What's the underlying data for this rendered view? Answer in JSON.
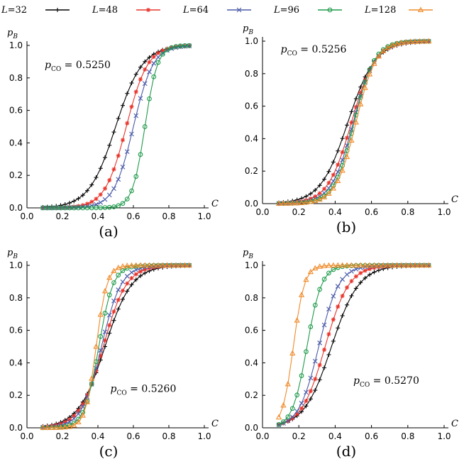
{
  "legend": [
    {
      "name": "L=32",
      "L": "L",
      "value": "=32",
      "color": "#000000",
      "marker": "plus"
    },
    {
      "name": "L=48",
      "L": "L",
      "value": "=48",
      "color": "#e8332a",
      "marker": "asterisk"
    },
    {
      "name": "L=64",
      "L": "L",
      "value": "=64",
      "color": "#4a5aa8",
      "marker": "cross"
    },
    {
      "name": "L=96",
      "L": "L",
      "value": "=96",
      "color": "#1e9a4a",
      "marker": "circle"
    },
    {
      "name": "L=128",
      "L": "L",
      "value": "=128",
      "color": "#f08a2a",
      "marker": "triangle"
    }
  ],
  "chart_data": [
    {
      "type": "line",
      "panel_label": "(a)",
      "ylabel": "p",
      "ylabel_sub": "B",
      "xlabel": "C",
      "annotation": {
        "prefix": "p",
        "sub": "CO",
        "text": " = 0.5250"
      },
      "xlim": [
        0.0,
        1.0
      ],
      "ylim": [
        0.0,
        1.0
      ],
      "xticks": [
        "0.0",
        "0.2",
        "0.4",
        "0.6",
        "0.8",
        "1.0"
      ],
      "yticks": [
        "0.0",
        "0.2",
        "0.4",
        "0.6",
        "0.8",
        "1.0"
      ],
      "series": [
        {
          "name": "L=32",
          "center": 0.5,
          "width": 0.075
        },
        {
          "name": "L=48",
          "center": 0.56,
          "width": 0.06
        },
        {
          "name": "L=64",
          "center": 0.6,
          "width": 0.055
        },
        {
          "name": "L=96",
          "center": 0.665,
          "width": 0.035
        }
      ]
    },
    {
      "type": "line",
      "panel_label": "(b)",
      "ylabel": "p",
      "ylabel_sub": "B",
      "xlabel": "C",
      "annotation": {
        "prefix": "p",
        "sub": "CO",
        "text": " = 0.5256"
      },
      "xlim": [
        0.0,
        1.0
      ],
      "ylim": [
        0.0,
        1.0
      ],
      "xticks": [
        "0.0",
        "0.2",
        "0.4",
        "0.6",
        "0.8",
        "1.0"
      ],
      "yticks": [
        "0.0",
        "0.2",
        "0.4",
        "0.6",
        "0.8",
        "1.0"
      ],
      "series": [
        {
          "name": "L=32",
          "center": 0.47,
          "width": 0.075
        },
        {
          "name": "L=48",
          "center": 0.49,
          "width": 0.065
        },
        {
          "name": "L=64",
          "center": 0.5,
          "width": 0.06
        },
        {
          "name": "L=96",
          "center": 0.505,
          "width": 0.055
        },
        {
          "name": "L=128",
          "center": 0.515,
          "width": 0.055
        }
      ]
    },
    {
      "type": "line",
      "panel_label": "(c)",
      "ylabel": "p",
      "ylabel_sub": "B",
      "xlabel": "C",
      "annotation": {
        "prefix": "p",
        "sub": "CO",
        "text": " = 0.5260"
      },
      "xlim": [
        0.0,
        1.0
      ],
      "ylim": [
        0.0,
        1.0
      ],
      "xticks": [
        "0.0",
        "0.2",
        "0.4",
        "0.6",
        "0.8",
        "1.0"
      ],
      "yticks": [
        "0.0",
        "0.2",
        "0.4",
        "0.6",
        "0.8",
        "1.0"
      ],
      "series": [
        {
          "name": "L=32",
          "center": 0.44,
          "width": 0.075
        },
        {
          "name": "L=48",
          "center": 0.43,
          "width": 0.065
        },
        {
          "name": "L=64",
          "center": 0.42,
          "width": 0.055
        },
        {
          "name": "L=96",
          "center": 0.405,
          "width": 0.04
        },
        {
          "name": "L=128",
          "center": 0.39,
          "width": 0.03
        }
      ]
    },
    {
      "type": "line",
      "panel_label": "(d)",
      "ylabel": "p",
      "ylabel_sub": "B",
      "xlabel": "C",
      "annotation": {
        "prefix": "p",
        "sub": "CO",
        "text": " = 0.5270"
      },
      "xlim": [
        0.0,
        1.0
      ],
      "ylim": [
        0.0,
        1.0
      ],
      "xticks": [
        "0.0",
        "0.2",
        "0.4",
        "0.6",
        "0.8",
        "1.0"
      ],
      "yticks": [
        "0.0",
        "0.2",
        "0.4",
        "0.6",
        "0.8",
        "1.0"
      ],
      "series": [
        {
          "name": "L=32",
          "center": 0.38,
          "width": 0.075
        },
        {
          "name": "L=48",
          "center": 0.345,
          "width": 0.065
        },
        {
          "name": "L=64",
          "center": 0.31,
          "width": 0.055
        },
        {
          "name": "L=96",
          "center": 0.245,
          "width": 0.04
        },
        {
          "name": "L=128",
          "center": 0.17,
          "width": 0.03
        }
      ]
    }
  ]
}
